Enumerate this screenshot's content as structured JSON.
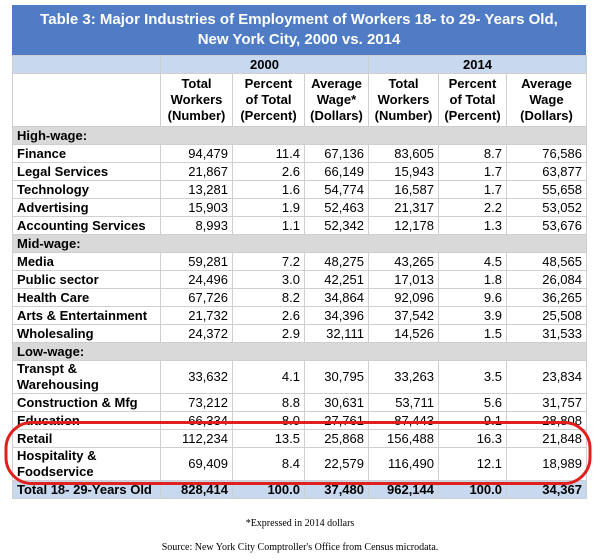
{
  "title": [
    "Table 3: Major Industries of Employment of Workers 18- to 29- Years Old,",
    "New York City,  2000 vs. 2014"
  ],
  "years": [
    "2000",
    "2014"
  ],
  "columns": [
    [
      "Total",
      "Workers",
      "(Number)"
    ],
    [
      "Percent",
      "of Total",
      "(Percent)"
    ],
    [
      "Average",
      "Wage*",
      "(Dollars)"
    ],
    [
      "Total",
      "Workers",
      "(Number)"
    ],
    [
      "Percent",
      "of Total",
      "(Percent)"
    ],
    [
      "Average",
      "Wage",
      "(Dollars)"
    ]
  ],
  "sections": [
    {
      "label": "High-wage:",
      "rows": [
        {
          "label": "Finance",
          "cells": [
            "94,479",
            "11.4",
            "67,136",
            "83,605",
            "8.7",
            "76,586"
          ]
        },
        {
          "label": "Legal Services",
          "cells": [
            "21,867",
            "2.6",
            "66,149",
            "15,943",
            "1.7",
            "63,877"
          ]
        },
        {
          "label": "Technology",
          "cells": [
            "13,281",
            "1.6",
            "54,774",
            "16,587",
            "1.7",
            "55,658"
          ]
        },
        {
          "label": "Advertising",
          "cells": [
            "15,903",
            "1.9",
            "52,463",
            "21,317",
            "2.2",
            "53,052"
          ]
        },
        {
          "label": "Accounting Services",
          "cells": [
            "8,993",
            "1.1",
            "52,342",
            "12,178",
            "1.3",
            "53,676"
          ]
        }
      ]
    },
    {
      "label": "Mid-wage:",
      "rows": [
        {
          "label": "Media",
          "cells": [
            "59,281",
            "7.2",
            "48,275",
            "43,265",
            "4.5",
            "48,565"
          ]
        },
        {
          "label": "Public sector",
          "cells": [
            "24,496",
            "3.0",
            "42,251",
            "17,013",
            "1.8",
            "26,084"
          ]
        },
        {
          "label": "Health Care",
          "cells": [
            "67,726",
            "8.2",
            "34,864",
            "92,096",
            "9.6",
            "36,265"
          ]
        },
        {
          "label": "Arts & Entertainment",
          "cells": [
            "21,732",
            "2.6",
            "34,396",
            "37,542",
            "3.9",
            "25,508"
          ]
        },
        {
          "label": "Wholesaling",
          "cells": [
            "24,372",
            "2.9",
            "32,111",
            "14,526",
            "1.5",
            "31,533"
          ]
        }
      ]
    },
    {
      "label": "Low-wage:",
      "rows": [
        {
          "label": "Transpt & Warehousing",
          "cells": [
            "33,632",
            "4.1",
            "30,795",
            "33,263",
            "3.5",
            "23,834"
          ]
        },
        {
          "label": "Construction & Mfg",
          "cells": [
            "73,212",
            "8.8",
            "30,631",
            "53,711",
            "5.6",
            "31,757"
          ]
        },
        {
          "label": "Education",
          "cells": [
            "66,334",
            "8.0",
            "27,761",
            "87,443",
            "9.1",
            "28,808"
          ]
        },
        {
          "label": "Retail",
          "cells": [
            "112,234",
            "13.5",
            "25,868",
            "156,488",
            "16.3",
            "21,848"
          ]
        },
        {
          "label": "Hospitality & Foodservice",
          "cells": [
            "69,409",
            "8.4",
            "22,579",
            "116,490",
            "12.1",
            "18,989"
          ]
        }
      ]
    }
  ],
  "total": {
    "label": "Total 18- 29-Years Old",
    "cells": [
      "828,414",
      "100.0",
      "37,480",
      "962,144",
      "100.0",
      "34,367"
    ]
  },
  "footnote": "*Expressed in 2014 dollars",
  "source": "Source: New York City Comptroller's Office from Census microdata."
}
